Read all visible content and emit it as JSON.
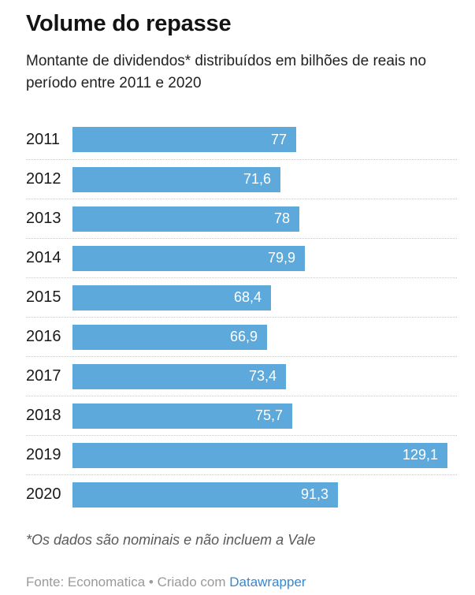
{
  "header": {
    "title": "Volume do repasse",
    "subtitle": "Montante de dividendos* distribuídos em bilhões de reais no período entre 2011 e 2020"
  },
  "chart_data": {
    "type": "bar",
    "orientation": "horizontal",
    "title": "Volume do repasse",
    "subtitle": "Montante de dividendos* distribuídos em bilhões de reais no período entre 2011 e 2020",
    "categories": [
      "2011",
      "2012",
      "2013",
      "2014",
      "2015",
      "2016",
      "2017",
      "2018",
      "2019",
      "2020"
    ],
    "values": [
      77,
      71.6,
      78,
      79.9,
      68.4,
      66.9,
      73.4,
      75.7,
      129.1,
      91.3
    ],
    "value_labels": [
      "77",
      "71,6",
      "78",
      "79,9",
      "68,4",
      "66,9",
      "73,4",
      "75,7",
      "129,1",
      "91,3"
    ],
    "unit": "bilhões de reais",
    "xlim": [
      0,
      130
    ],
    "bar_color": "#5EA9DC",
    "value_label_color": "#ffffff",
    "label_position": "inside-end",
    "grid": "dotted-row-separators",
    "separator_color": "#c9c9c9"
  },
  "footnote": {
    "text": "*Os dados são nominais e não incluem a Vale"
  },
  "footer": {
    "source_text": "Fonte: Economatica • Criado com ",
    "link_label": "Datawrapper",
    "link_color": "#3389d3"
  }
}
